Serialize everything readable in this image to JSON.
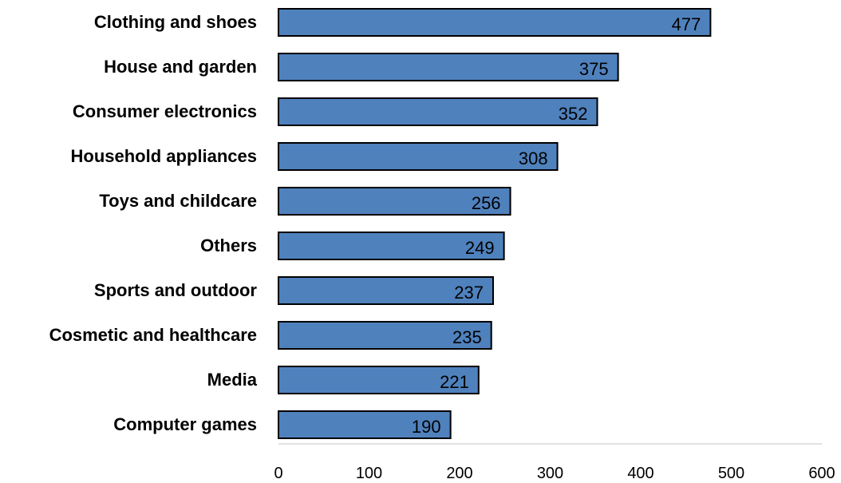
{
  "chart_data": {
    "type": "bar",
    "orientation": "horizontal",
    "categories": [
      "Clothing and shoes",
      "House and garden",
      "Consumer electronics",
      "Household appliances",
      "Toys and childcare",
      "Others",
      "Sports and outdoor",
      "Cosmetic and healthcare",
      "Media",
      "Computer games"
    ],
    "values": [
      477,
      375,
      352,
      308,
      256,
      249,
      237,
      235,
      221,
      190
    ],
    "xlim": [
      0,
      600
    ],
    "xticks": [
      "0",
      "100",
      "200",
      "300",
      "400",
      "500",
      "600"
    ],
    "title": "",
    "xlabel": "",
    "ylabel": "",
    "grid": false,
    "legend": "none",
    "bar_color": "#4f81bd",
    "bar_edge_color": "#000000"
  }
}
